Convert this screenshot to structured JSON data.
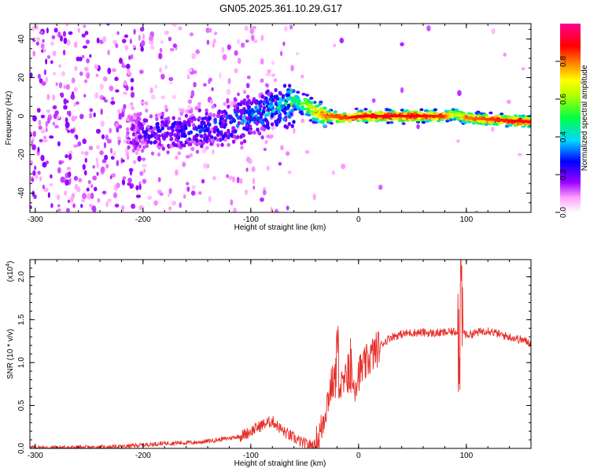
{
  "title": "GN05.2025.361.10.29.G17",
  "colors": {
    "snr_line": "#e8302a",
    "palette": [
      "#ffffff",
      "#ff66ff",
      "#8000ff",
      "#0000ff",
      "#00e5ff",
      "#00ff33",
      "#ffff00",
      "#ff8000",
      "#ff0000",
      "#ff00aa"
    ]
  },
  "chart_data": [
    {
      "type": "heatmap",
      "xlabel": "Height of straight line (km)",
      "ylabel": "Frequency (Hz)",
      "xlim": [
        -305,
        160
      ],
      "ylim": [
        -50,
        48
      ],
      "xticks": [
        -300,
        -200,
        -100,
        0,
        100
      ],
      "yticks": [
        -40,
        -20,
        0,
        20,
        40
      ],
      "xtick_labels": [
        "-300",
        "-200",
        "-100",
        "0",
        "100"
      ],
      "ytick_labels": [
        "-40",
        "-20",
        "0",
        "20",
        "40"
      ],
      "colorbar": {
        "label": "Normalized spectral amplitude",
        "range": [
          0,
          1
        ],
        "ticks": [
          0.0,
          0.2,
          0.4,
          0.6,
          0.8
        ],
        "tick_labels": [
          "0.0",
          "0.2",
          "0.4",
          "0.6",
          "0.8"
        ]
      },
      "ridge": [
        {
          "x": -210,
          "y": -9,
          "amp": 0.15
        },
        {
          "x": -180,
          "y": -8,
          "amp": 0.2
        },
        {
          "x": -150,
          "y": -7,
          "amp": 0.22
        },
        {
          "x": -120,
          "y": -4,
          "amp": 0.25
        },
        {
          "x": -90,
          "y": 2,
          "amp": 0.3
        },
        {
          "x": -70,
          "y": 6,
          "amp": 0.35
        },
        {
          "x": -58,
          "y": 8,
          "amp": 0.45
        },
        {
          "x": -50,
          "y": 6,
          "amp": 0.6
        },
        {
          "x": -40,
          "y": 2,
          "amp": 0.7
        },
        {
          "x": -30,
          "y": 0,
          "amp": 0.8
        },
        {
          "x": -10,
          "y": -1,
          "amp": 0.85
        },
        {
          "x": 0,
          "y": 0,
          "amp": 0.9
        },
        {
          "x": 40,
          "y": 0,
          "amp": 0.9
        },
        {
          "x": 80,
          "y": 0,
          "amp": 0.85
        },
        {
          "x": 90,
          "y": 1,
          "amp": 0.6
        },
        {
          "x": 100,
          "y": -1,
          "amp": 0.8
        },
        {
          "x": 130,
          "y": -2,
          "amp": 0.85
        },
        {
          "x": 160,
          "y": -3,
          "amp": 0.9
        }
      ]
    },
    {
      "type": "line",
      "xlabel": "Height of straight line (km)",
      "ylabel": "SNR (10 * v/v)",
      "scale_label": "(x10",
      "scale_exp": "4",
      "scale_close": ")",
      "xlim": [
        -305,
        160
      ],
      "ylim": [
        0,
        2.2
      ],
      "xticks": [
        -300,
        -200,
        -100,
        0,
        100
      ],
      "yticks": [
        0.0,
        0.5,
        1.0,
        1.5,
        2.0
      ],
      "xtick_labels": [
        "-300",
        "-200",
        "-100",
        "0",
        "100"
      ],
      "ytick_labels": [
        "0.0",
        "0.5",
        "1.0",
        "1.5",
        "2.0"
      ],
      "series": [
        {
          "x": [
            -305,
            -250,
            -220,
            -200,
            -180,
            -150,
            -130,
            -110,
            -100,
            -90,
            -80,
            -70,
            -60,
            -50,
            -40,
            -35,
            -30,
            -25,
            -20,
            -15,
            -10,
            -5,
            0,
            5,
            10,
            20,
            30,
            40,
            50,
            60,
            70,
            80,
            90,
            95,
            100,
            110,
            120,
            130,
            140,
            150,
            160
          ],
          "y": [
            0.01,
            0.01,
            0.02,
            0.04,
            0.06,
            0.07,
            0.1,
            0.14,
            0.2,
            0.27,
            0.32,
            0.2,
            0.12,
            0.05,
            0.03,
            0.2,
            0.5,
            0.75,
            0.8,
            0.7,
            0.85,
            0.7,
            0.88,
            0.95,
            1.05,
            1.2,
            1.3,
            1.33,
            1.35,
            1.35,
            1.34,
            1.35,
            1.36,
            1.4,
            1.32,
            1.35,
            1.38,
            1.33,
            1.3,
            1.27,
            1.23
          ]
        }
      ]
    }
  ]
}
